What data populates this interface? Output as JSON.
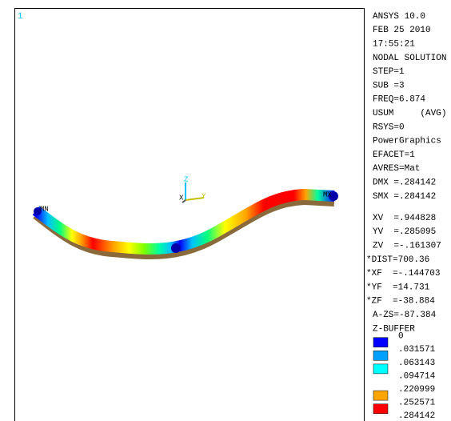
{
  "viewport": {
    "window_number": "1",
    "triad": {
      "z": "Z",
      "x": "X",
      "y": "Y"
    },
    "min_label": "MN",
    "max_label": "MX"
  },
  "info": [
    "ANSYS 10.0",
    "FEB 25 2010",
    "17:55:21",
    "NODAL SOLUTION",
    "STEP=1",
    "SUB =3",
    "FREQ=6.874",
    "USUM     (AVG)",
    "RSYS=0",
    "PowerGraphics",
    "EFACET=1",
    "AVRES=Mat",
    "DMX =.284142",
    "SMX =.284142"
  ],
  "view": [
    "XV  =.944828",
    "YV  =.285095",
    "ZV  =-.161307",
    "*DIST=700.36",
    "*XF  =-.144703",
    "*YF  =14.731",
    "*ZF  =-38.884",
    "A-ZS=-87.384",
    "Z-BUFFER"
  ],
  "legend": [
    {
      "label": "0",
      "color": "#0000ff"
    },
    {
      "label": ".031571",
      "color": "#00a0ff"
    },
    {
      "label": ".063143",
      "color": "#00ffff"
    },
    {
      "label": ".094714",
      "color": null
    },
    {
      "label": ".220999",
      "color": "#ffa500"
    },
    {
      "label": ".252571",
      "color": "#ff0000"
    },
    {
      "label": ".284142",
      "color": null
    }
  ]
}
